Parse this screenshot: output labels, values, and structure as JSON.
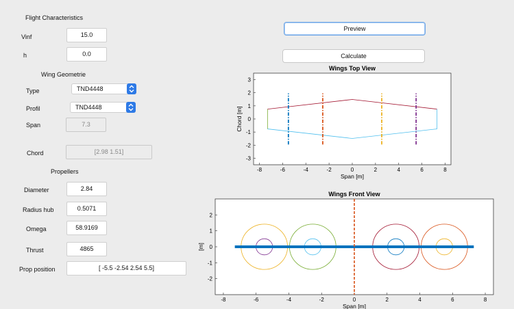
{
  "flight": {
    "heading": "Flight Characteristics",
    "vinf_label": "Vinf",
    "vinf_value": "15.0",
    "h_label": "h",
    "h_value": "0.0"
  },
  "wing": {
    "heading": "Wing Geometrie",
    "type_label": "Type",
    "type_value": "TND4448",
    "profil_label": "Profil",
    "profil_value": "TND4448",
    "span_label": "Span",
    "span_value": "7.3",
    "chord_label": "Chord",
    "chord_value": "[2.98 1.51]"
  },
  "propellers": {
    "heading": "Propellers",
    "diameter_label": "Diameter",
    "diameter_value": "2.84",
    "radius_hub_label": "Radius hub",
    "radius_hub_value": "0.5071",
    "omega_label": "Omega",
    "omega_value": "58.9169",
    "thrust_label": "Thrust",
    "thrust_value": "4865",
    "position_label": "Prop position",
    "position_value": "[ -5.5 -2.54 2.54 5.5]"
  },
  "buttons": {
    "preview": "Preview",
    "calculate": "Calculate"
  },
  "chart_data": [
    {
      "type": "line",
      "title": "Wings Top View",
      "xlabel": "Span [m]",
      "ylabel": "Chord [m]",
      "xlim": [
        -8.5,
        8.5
      ],
      "ylim": [
        -3.5,
        3.5
      ],
      "xticks": [
        -8,
        -6,
        -4,
        -2,
        0,
        2,
        4,
        6,
        8
      ],
      "yticks": [
        -3,
        -2,
        -1,
        0,
        1,
        2,
        3
      ],
      "series": [
        {
          "color": "#a2142f",
          "x": [
            -7.3,
            0,
            7.3
          ],
          "y": [
            0.75,
            1.49,
            0.75
          ]
        },
        {
          "color": "#4dbeee",
          "x": [
            -7.3,
            0,
            7.3
          ],
          "y": [
            -0.76,
            -1.49,
            -0.76
          ]
        },
        {
          "color": "#77ac30",
          "x": [
            -7.3,
            -7.3
          ],
          "y": [
            0.75,
            -0.76
          ]
        },
        {
          "color": "#4dbeee",
          "x": [
            7.3,
            7.3
          ],
          "y": [
            0.75,
            -0.76
          ]
        }
      ],
      "prop_lines": [
        {
          "x": -5.5,
          "color": "#0072bd"
        },
        {
          "x": -2.54,
          "color": "#d95319"
        },
        {
          "x": 2.54,
          "color": "#edb120"
        },
        {
          "x": 5.5,
          "color": "#7e2f8e"
        }
      ],
      "prop_line_range": [
        -1.95,
        1.95
      ]
    },
    {
      "type": "line",
      "title": "Wings Front View",
      "xlabel": "Span [m]",
      "ylabel": "[m]",
      "xlim": [
        -8.5,
        8.5
      ],
      "ylim": [
        -3,
        3
      ],
      "xticks": [
        -8,
        -6,
        -4,
        -2,
        0,
        2,
        4,
        6,
        8
      ],
      "yticks": [
        -2,
        -1,
        0,
        1,
        2
      ],
      "wing_line": {
        "x": [
          -7.3,
          7.3
        ],
        "y": 0,
        "color": "#0072bd"
      },
      "center_line": {
        "x": 0,
        "color": "#d95319"
      },
      "propellers": [
        {
          "x": -5.5,
          "r": 1.42,
          "hub": 0.5071,
          "color": "#edb120",
          "hub_color": "#7e2f8e"
        },
        {
          "x": -2.54,
          "r": 1.42,
          "hub": 0.5071,
          "color": "#77ac30",
          "hub_color": "#4dbeee"
        },
        {
          "x": 2.54,
          "r": 1.42,
          "hub": 0.5071,
          "color": "#a2142f",
          "hub_color": "#0072bd"
        },
        {
          "x": 5.5,
          "r": 1.42,
          "hub": 0.5071,
          "color": "#d95319",
          "hub_color": "#edb120"
        }
      ]
    }
  ]
}
